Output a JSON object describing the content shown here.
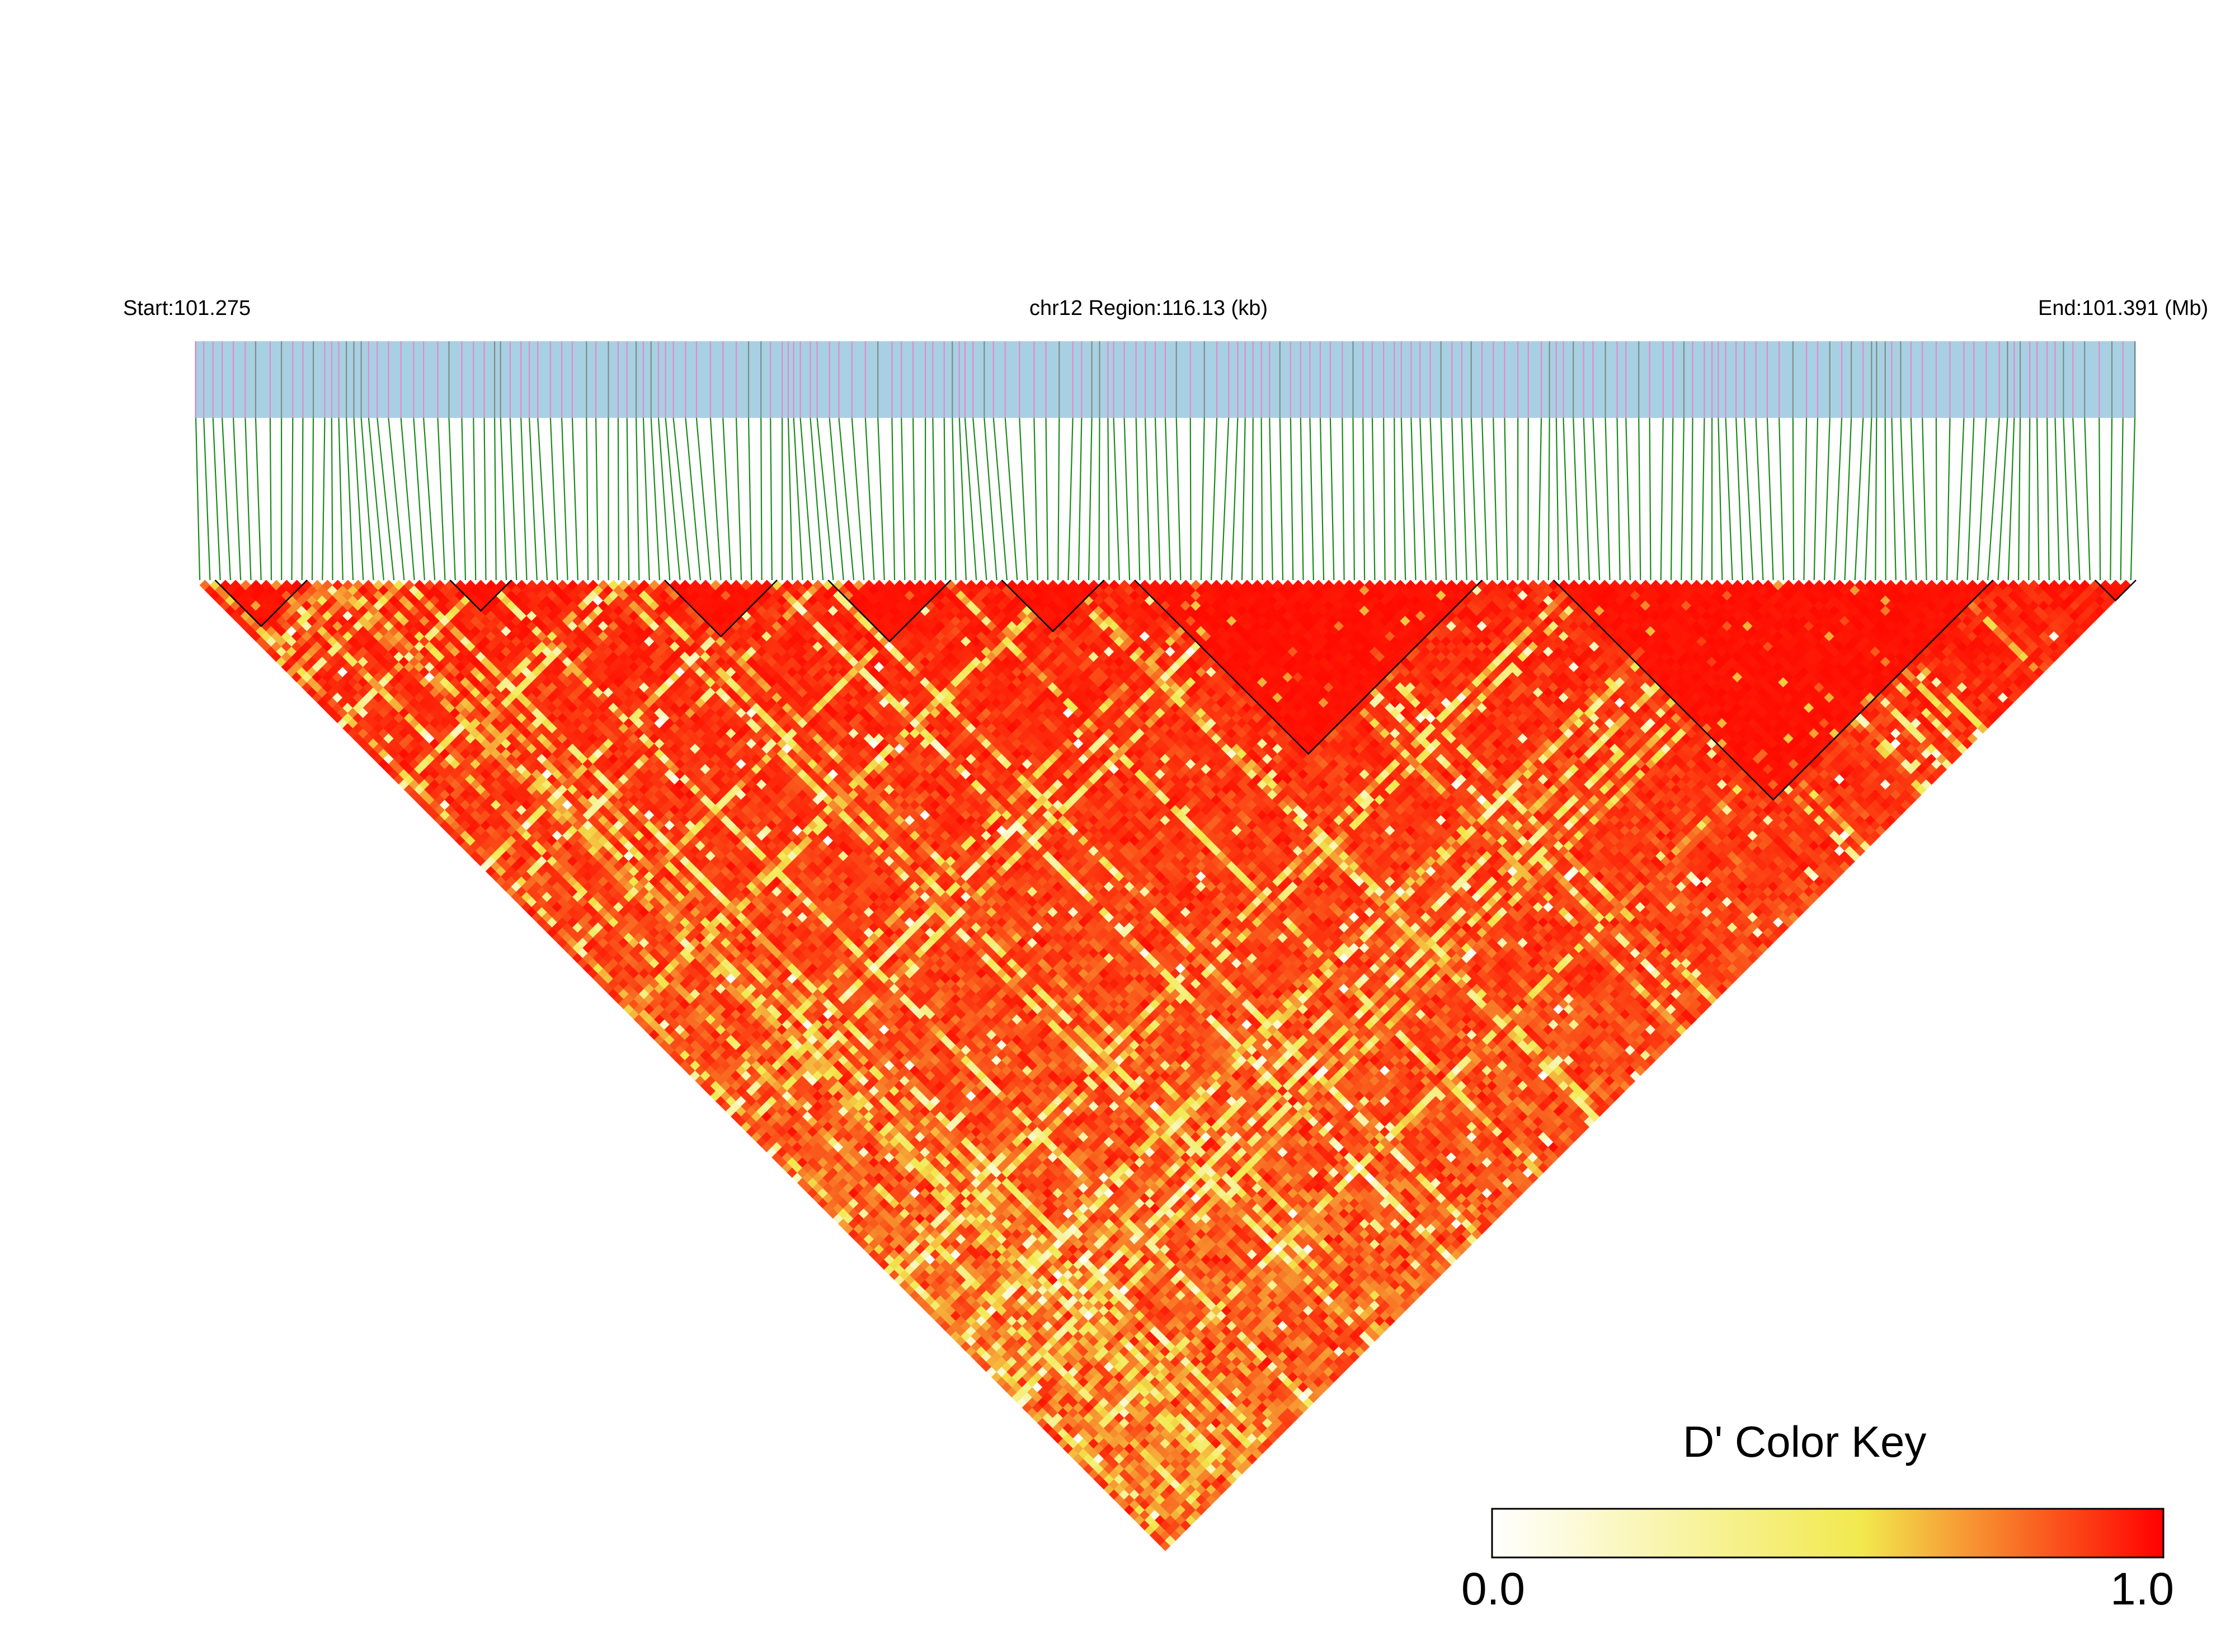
{
  "header": {
    "start_label": "Start:101.275",
    "region_label": "chr12 Region:116.13 (kb)",
    "end_label": "End:101.391 (Mb)"
  },
  "color_key": {
    "title": "D' Color Key",
    "min_label": "0.0",
    "max_label": "1.0",
    "colors": [
      "#ffffff",
      "#f2e94e",
      "#ff0000"
    ]
  },
  "colors": {
    "track_background": "#a8d0e3",
    "snp_tick_typed": "#e28acb",
    "snp_tick_other": "#7f8c88",
    "connector_line": "#1a8a1a",
    "block_outline": "#000000",
    "high_ld": "#ff0a00"
  },
  "chart_data": {
    "type": "heatmap",
    "title": "",
    "xlabel": "",
    "ylabel": "",
    "chromosome": "chr12",
    "region_start_mb": 101.275,
    "region_end_mb": 101.391,
    "region_length_kb": 116.13,
    "metric": "D'",
    "value_range": [
      0.0,
      1.0
    ],
    "num_markers": 190,
    "ld_blocks_marker_index_ranges": [
      [
        2,
        10
      ],
      [
        25,
        30
      ],
      [
        46,
        56
      ],
      [
        62,
        73
      ],
      [
        79,
        88
      ],
      [
        92,
        125
      ],
      [
        133,
        175
      ],
      [
        186,
        189
      ]
    ]
  }
}
